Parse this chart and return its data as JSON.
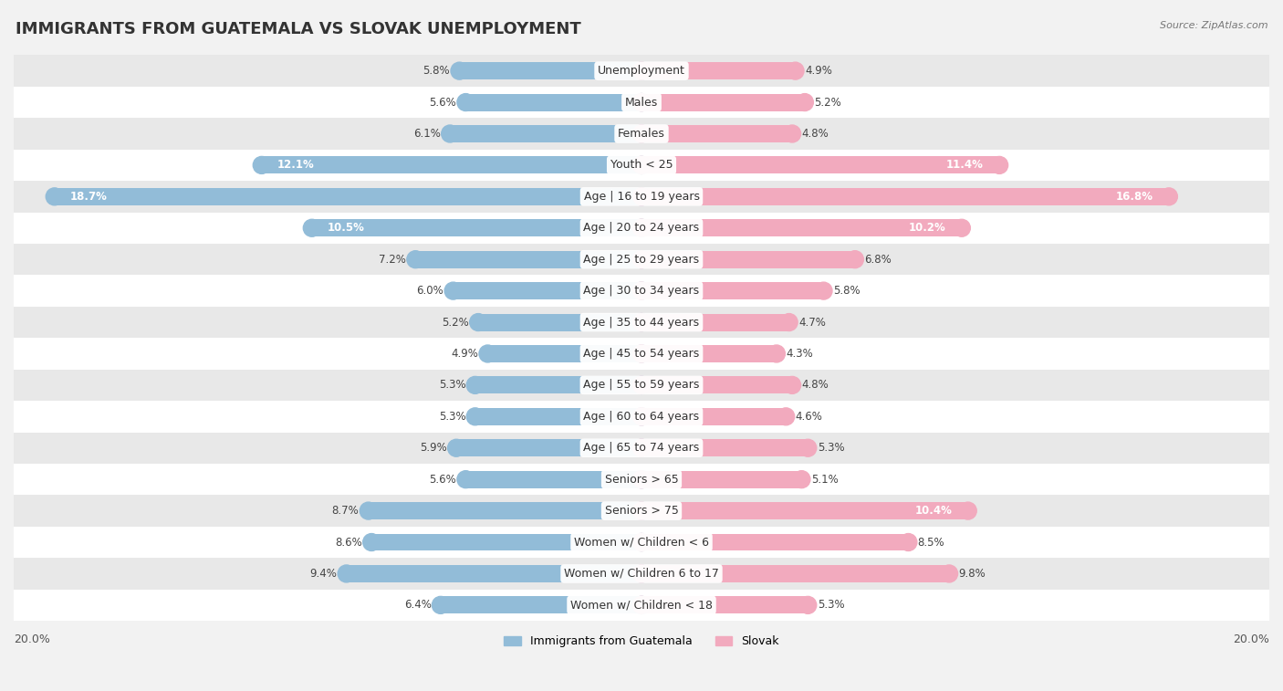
{
  "title": "IMMIGRANTS FROM GUATEMALA VS SLOVAK UNEMPLOYMENT",
  "source": "Source: ZipAtlas.com",
  "categories": [
    "Unemployment",
    "Males",
    "Females",
    "Youth < 25",
    "Age | 16 to 19 years",
    "Age | 20 to 24 years",
    "Age | 25 to 29 years",
    "Age | 30 to 34 years",
    "Age | 35 to 44 years",
    "Age | 45 to 54 years",
    "Age | 55 to 59 years",
    "Age | 60 to 64 years",
    "Age | 65 to 74 years",
    "Seniors > 65",
    "Seniors > 75",
    "Women w/ Children < 6",
    "Women w/ Children 6 to 17",
    "Women w/ Children < 18"
  ],
  "guatemala_values": [
    5.8,
    5.6,
    6.1,
    12.1,
    18.7,
    10.5,
    7.2,
    6.0,
    5.2,
    4.9,
    5.3,
    5.3,
    5.9,
    5.6,
    8.7,
    8.6,
    9.4,
    6.4
  ],
  "slovak_values": [
    4.9,
    5.2,
    4.8,
    11.4,
    16.8,
    10.2,
    6.8,
    5.8,
    4.7,
    4.3,
    4.8,
    4.6,
    5.3,
    5.1,
    10.4,
    8.5,
    9.8,
    5.3
  ],
  "guatemala_color": "#92bcd8",
  "slovak_color": "#f2aabe",
  "guatemala_label": "Immigrants from Guatemala",
  "slovak_label": "Slovak",
  "xlim": 20.0,
  "bar_height": 0.55,
  "background_color": "#f2f2f2",
  "row_color_odd": "#ffffff",
  "row_color_even": "#e8e8e8",
  "title_fontsize": 13,
  "label_fontsize": 9,
  "value_fontsize": 8.5
}
